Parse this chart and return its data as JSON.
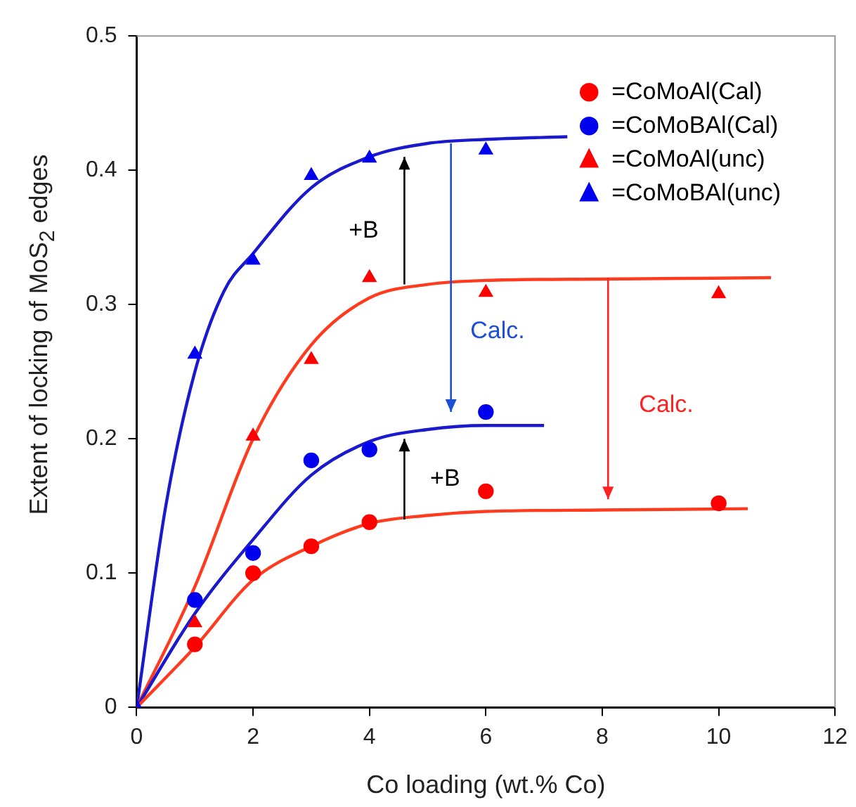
{
  "chart_data": {
    "type": "scatter",
    "xlabel": "Co loading (wt.% Co)",
    "ylabel": "Extent of locking of MoS$_{2}$ edges",
    "xlim": [
      0,
      12
    ],
    "xticks": [
      0,
      2,
      4,
      6,
      8,
      10,
      12
    ],
    "ylim": [
      0,
      0.5
    ],
    "yticks": [
      0,
      0.1,
      0.2,
      0.3,
      0.4,
      0.5
    ],
    "grid": false,
    "legend": "top right",
    "series": [
      {
        "name": "=CoMoAl(Cal)",
        "type": "scatter",
        "marker": "circle",
        "color": "#ff0000",
        "x": [
          1,
          2,
          3,
          4,
          6,
          10
        ],
        "values": [
          0.047,
          0.1,
          0.12,
          0.138,
          0.161,
          0.152
        ]
      },
      {
        "name": "=CoMoBAl(Cal)",
        "type": "scatter",
        "marker": "circle",
        "color": "#0000ee",
        "x": [
          1,
          2,
          3,
          4,
          6
        ],
        "values": [
          0.08,
          0.115,
          0.184,
          0.192,
          0.22
        ]
      },
      {
        "name": "=CoMoAl(unc)",
        "type": "scatter",
        "marker": "triangle",
        "color": "#ff0000",
        "x": [
          1,
          2,
          3,
          4,
          6,
          10
        ],
        "values": [
          0.063,
          0.202,
          0.259,
          0.32,
          0.309,
          0.308
        ]
      },
      {
        "name": "=CoMoBAl(unc)",
        "type": "scatter",
        "marker": "triangle",
        "color": "#0000ee",
        "x": [
          0,
          1,
          2,
          3,
          4,
          6
        ],
        "values": [
          0,
          0.263,
          0.333,
          0.396,
          0.409,
          0.415
        ]
      },
      {
        "type": "line",
        "marker": "none",
        "color": "#ff3b1f",
        "x": [
          0,
          1,
          2,
          3,
          4,
          5,
          6,
          8,
          10.5
        ],
        "values": [
          0,
          0.045,
          0.095,
          0.12,
          0.137,
          0.143,
          0.146,
          0.147,
          0.148
        ]
      },
      {
        "type": "line",
        "marker": "none",
        "color": "#1a1acc",
        "x": [
          0,
          1,
          2,
          3,
          4,
          5,
          6,
          7
        ],
        "values": [
          0,
          0.07,
          0.125,
          0.173,
          0.198,
          0.207,
          0.21,
          0.21
        ]
      },
      {
        "type": "line",
        "marker": "none",
        "color": "#ff3b1f",
        "x": [
          0,
          1,
          2,
          3,
          4,
          5,
          6,
          8,
          10.9
        ],
        "values": [
          0,
          0.09,
          0.2,
          0.27,
          0.305,
          0.315,
          0.318,
          0.319,
          0.32
        ]
      },
      {
        "type": "line",
        "marker": "none",
        "color": "#1a1acc",
        "x": [
          0,
          0.5,
          1,
          1.5,
          2,
          3,
          4,
          5,
          6,
          7.4
        ],
        "values": [
          0,
          0.15,
          0.25,
          0.31,
          0.338,
          0.387,
          0.41,
          0.42,
          0.423,
          0.425
        ]
      }
    ],
    "annotations": [
      "+B",
      "+B",
      "Calc.",
      "Calc."
    ]
  }
}
